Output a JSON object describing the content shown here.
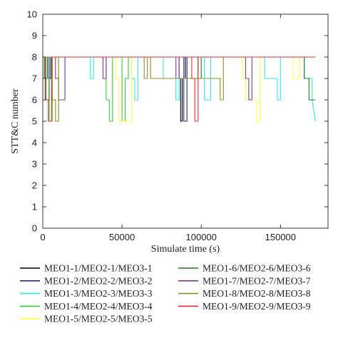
{
  "chart_data": {
    "type": "line",
    "xlabel": "Simulate time (s)",
    "ylabel": "STT&C number",
    "xlim": [
      0,
      180000
    ],
    "ylim": [
      0,
      10
    ],
    "xticks": [
      0,
      50000,
      100000,
      150000
    ],
    "xtick_labels": [
      "0",
      "50000",
      "100000",
      "150000"
    ],
    "yticks": [
      0,
      1,
      2,
      3,
      4,
      5,
      6,
      7,
      8,
      9,
      10
    ],
    "ytick_labels": [
      "0",
      "1",
      "2",
      "3",
      "4",
      "5",
      "6",
      "7",
      "8",
      "9",
      "10"
    ],
    "grid": false,
    "legend_position": "bottom",
    "series": [
      {
        "name": "MEO1-1/MEO2-1/MEO3-1",
        "color": "#000000",
        "x": [
          0,
          2000,
          2000,
          4000,
          4000,
          8000,
          8000,
          86000,
          86000,
          87000,
          87000,
          88000,
          88000,
          90000,
          90000,
          172000
        ],
        "y": [
          8,
          8,
          7,
          7,
          8,
          8,
          8,
          8,
          7,
          7,
          5,
          5,
          7,
          7,
          8,
          8
        ]
      },
      {
        "name": "MEO1-2/MEO2-2/MEO3-2",
        "color": "#1f2a8c",
        "x": [
          0,
          3000,
          3000,
          5000,
          5000,
          89000,
          89000,
          91000,
          91000,
          172000
        ],
        "y": [
          8,
          8,
          7,
          7,
          8,
          8,
          5,
          5,
          8,
          8
        ]
      },
      {
        "name": "MEO1-3/MEO2-3/MEO3-3",
        "color": "#33e6e6",
        "x": [
          0,
          30000,
          30000,
          32000,
          32000,
          56000,
          56000,
          58000,
          58000,
          60000,
          60000,
          76000,
          76000,
          84000,
          84000,
          86000,
          86000,
          102000,
          102000,
          106000,
          106000,
          140000,
          140000,
          148000,
          148000,
          150000,
          150000,
          165000,
          165000,
          170000,
          170000,
          172000
        ],
        "y": [
          8,
          8,
          7,
          7,
          8,
          8,
          7,
          7,
          6,
          6,
          8,
          8,
          7,
          7,
          6,
          6,
          8,
          8,
          6,
          6,
          8,
          8,
          7,
          7,
          6,
          6,
          8,
          8,
          7,
          7,
          6,
          5
        ]
      },
      {
        "name": "MEO1-4/MEO2-4/MEO3-4",
        "color": "#33cc33",
        "x": [
          0,
          2000,
          2000,
          4000,
          4000,
          6000,
          6000,
          40000,
          40000,
          42000,
          42000,
          44000,
          44000,
          50000,
          50000,
          52000,
          52000,
          54000,
          54000,
          172000
        ],
        "y": [
          8,
          8,
          7,
          7,
          5,
          5,
          8,
          8,
          6,
          6,
          5,
          5,
          8,
          8,
          5,
          5,
          7,
          7,
          8,
          8
        ]
      },
      {
        "name": "MEO1-5/MEO2-5/MEO3-5",
        "color": "#ffff33",
        "x": [
          0,
          46000,
          46000,
          48000,
          48000,
          56000,
          56000,
          126000,
          126000,
          128000,
          128000,
          135000,
          135000,
          137000,
          137000,
          158000,
          158000,
          162000,
          162000,
          172000
        ],
        "y": [
          8,
          8,
          7,
          7,
          5,
          5,
          8,
          8,
          7,
          7,
          6,
          6,
          5,
          5,
          8,
          8,
          7,
          7,
          8,
          8
        ]
      },
      {
        "name": "MEO1-6/MEO2-6/MEO3-6",
        "color": "#1f7a1f",
        "x": [
          0,
          1000,
          1000,
          2000,
          2000,
          4000,
          4000,
          98000,
          98000,
          100000,
          100000,
          165000,
          165000,
          168000,
          168000,
          172000
        ],
        "y": [
          8,
          8,
          7,
          7,
          6,
          6,
          8,
          8,
          7,
          7,
          8,
          8,
          7,
          7,
          6,
          6
        ]
      },
      {
        "name": "MEO1-7/MEO2-7/MEO3-7",
        "color": "#7a3a8c",
        "x": [
          0,
          8000,
          8000,
          10000,
          10000,
          14000,
          14000,
          16000,
          16000,
          38000,
          38000,
          40000,
          40000,
          84000,
          84000,
          86000,
          86000,
          128000,
          128000,
          130000,
          130000,
          132000,
          132000,
          172000
        ],
        "y": [
          8,
          8,
          7,
          7,
          6,
          6,
          8,
          8,
          8,
          8,
          7,
          7,
          8,
          8,
          7,
          7,
          8,
          8,
          7,
          7,
          6,
          6,
          8,
          8
        ]
      },
      {
        "name": "MEO1-8/MEO2-8/MEO3-8",
        "color": "#8c8c1f",
        "x": [
          0,
          6000,
          6000,
          8000,
          8000,
          10000,
          10000,
          20000,
          20000,
          64000,
          64000,
          66000,
          66000,
          68000,
          68000,
          112000,
          112000,
          114000,
          114000,
          116000,
          116000,
          172000
        ],
        "y": [
          8,
          8,
          6,
          6,
          5,
          5,
          8,
          8,
          8,
          8,
          7,
          7,
          8,
          8,
          7,
          7,
          6,
          6,
          8,
          8,
          8,
          8
        ]
      },
      {
        "name": "MEO1-9/MEO2-9/MEO3-9",
        "color": "#e62e2e",
        "x": [
          0,
          1500,
          1500,
          3500,
          3500,
          5500,
          5500,
          94000,
          94000,
          96000,
          96000,
          98000,
          98000,
          172000
        ],
        "y": [
          8,
          8,
          6,
          6,
          5,
          5,
          8,
          8,
          7,
          7,
          5,
          5,
          8,
          8
        ]
      }
    ]
  }
}
